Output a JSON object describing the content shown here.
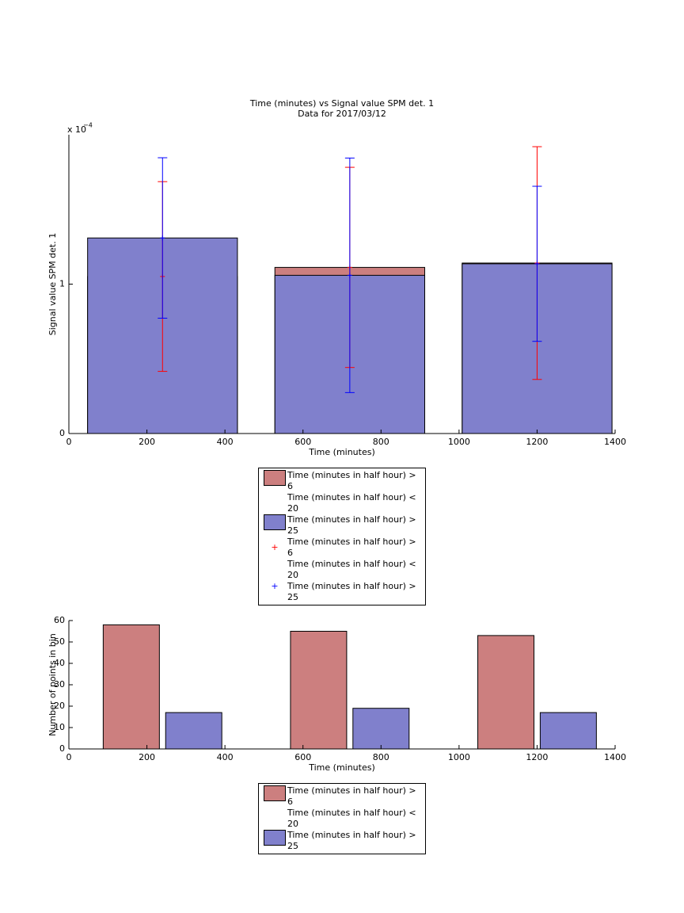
{
  "chart_data": [
    {
      "type": "bar",
      "title": "Time (minutes) vs Signal value SPM det. 1",
      "subtitle": "Data for 2017/03/12",
      "x_label": "Time (minutes)",
      "y_label": "Signal value SPM det. 1",
      "y_scale_label": "x 10",
      "y_scale_exponent": "−4",
      "x": [
        240,
        720,
        1200
      ],
      "xlim": [
        0,
        1400
      ],
      "xticks": [
        0,
        200,
        400,
        600,
        800,
        1000,
        1200,
        1400
      ],
      "ylim": [
        0,
        2
      ],
      "yticks": [
        0,
        1
      ],
      "legend": "south-outside",
      "series": [
        {
          "name": "Time (minutes in half hour) > 6\nTime (minutes in half hour) < 20",
          "color": "#cc7f7f",
          "error_color": "#ff0000",
          "values": [
            1.051,
            1.112,
            1.141
          ],
          "errors": [
            0.635,
            0.67,
            0.779
          ]
        },
        {
          "name": "Time (minutes in half hour) > 25",
          "color": "#8080cc",
          "error_color": "#0000ff",
          "values": [
            1.309,
            1.059,
            1.136
          ],
          "errors": [
            0.537,
            0.785,
            0.519
          ]
        }
      ]
    },
    {
      "type": "grouped_bar",
      "x_label": "Time (minutes)",
      "y_label": "Number of points in bin",
      "x": [
        240,
        720,
        1200
      ],
      "xlim": [
        0,
        1400
      ],
      "xticks": [
        0,
        200,
        400,
        600,
        800,
        1000,
        1200,
        1400
      ],
      "ylim": [
        0,
        60
      ],
      "yticks": [
        0,
        10,
        20,
        30,
        40,
        50,
        60
      ],
      "legend": "south-outside",
      "series": [
        {
          "name": "Time (minutes in half hour) > 6\nTime (minutes in half hour) < 20",
          "color": "#cc7f7f",
          "values": [
            58,
            55,
            53
          ]
        },
        {
          "name": "Time (minutes in half hour) > 25",
          "color": "#8080cc",
          "values": [
            17,
            19,
            17
          ]
        }
      ]
    }
  ]
}
